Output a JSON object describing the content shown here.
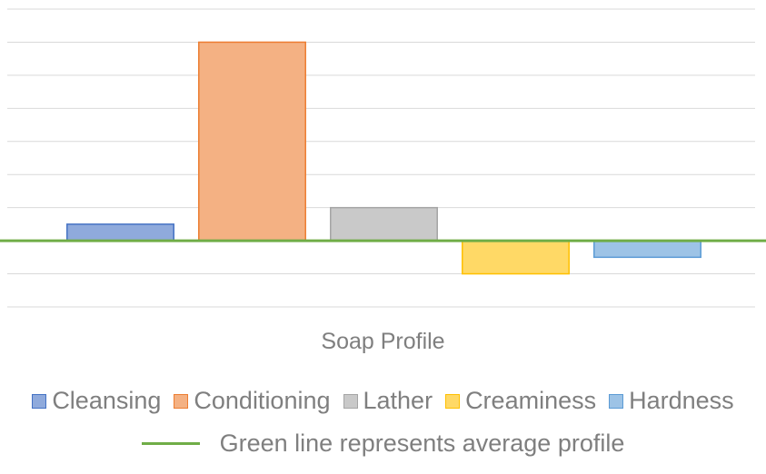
{
  "chart_data": {
    "type": "bar",
    "title": "",
    "xlabel": "Soap Profile",
    "ylabel": "",
    "categories": [
      "Soap Profile"
    ],
    "series": [
      {
        "name": "Cleansing",
        "values": [
          0.5
        ],
        "fill": "#8faadc",
        "stroke": "#4472c4"
      },
      {
        "name": "Conditioning",
        "values": [
          6.0
        ],
        "fill": "#f4b183",
        "stroke": "#ed7d31"
      },
      {
        "name": "Lather",
        "values": [
          1.0
        ],
        "fill": "#c9c9c9",
        "stroke": "#a5a5a5"
      },
      {
        "name": "Creaminess",
        "values": [
          -1.0
        ],
        "fill": "#ffd966",
        "stroke": "#ffc000"
      },
      {
        "name": "Hardness",
        "values": [
          -0.5
        ],
        "fill": "#9dc3e6",
        "stroke": "#5b9bd5"
      }
    ],
    "ylim": [
      -2,
      7
    ],
    "grid": true,
    "reference_line": {
      "value": 0,
      "color": "#70ad47",
      "label": "Green line represents average profile"
    },
    "legend_position": "bottom"
  }
}
